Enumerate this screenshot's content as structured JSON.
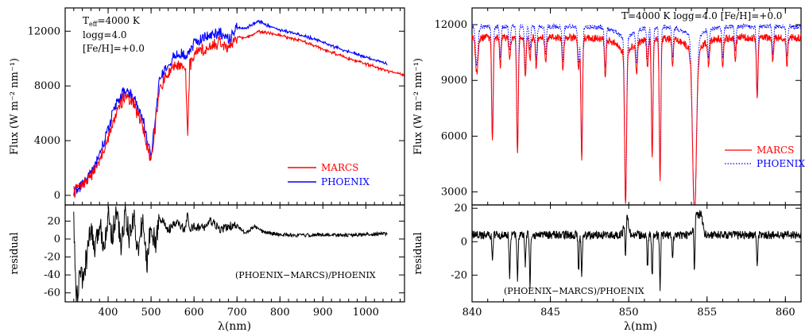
{
  "chart_data": [
    {
      "type": "line",
      "panel": "left-top",
      "ylabel": "Flux (W m⁻² nm⁻¹)",
      "xlim": [
        300,
        1090
      ],
      "ylim": [
        -700,
        13700
      ],
      "yticks": [
        0,
        4000,
        8000,
        12000
      ],
      "grid": false,
      "legend_position": "bottom-right",
      "annotations": [
        "T",
        "eff",
        "=4000 K",
        "logg=4.0",
        "[Fe/H]=+0.0"
      ],
      "series": [
        {
          "name": "MARCS",
          "color": "#ff0000",
          "style": "solid",
          "x": [
            320,
            340,
            360,
            380,
            400,
            420,
            440,
            460,
            480,
            500,
            520,
            540,
            560,
            580,
            585,
            590,
            600,
            620,
            640,
            660,
            680,
            700,
            720,
            750,
            800,
            850,
            900,
            950,
            1000,
            1050,
            1090
          ],
          "y": [
            200,
            800,
            1400,
            2600,
            4200,
            6200,
            7300,
            6600,
            5200,
            2400,
            7800,
            9000,
            9600,
            9400,
            4300,
            9500,
            10300,
            10700,
            10900,
            11300,
            10600,
            11600,
            11500,
            12000,
            11700,
            11300,
            10700,
            10100,
            9600,
            9100,
            8800
          ]
        },
        {
          "name": "PHOENIX",
          "color": "#0000ff",
          "style": "solid",
          "x": [
            320,
            340,
            360,
            380,
            400,
            420,
            440,
            460,
            480,
            500,
            520,
            540,
            560,
            580,
            600,
            620,
            640,
            660,
            680,
            700,
            720,
            750,
            800,
            850,
            900,
            950,
            1000,
            1050
          ],
          "y": [
            200,
            900,
            1600,
            3000,
            4800,
            6800,
            7700,
            7000,
            5600,
            2800,
            8600,
            9700,
            10300,
            10200,
            11100,
            11500,
            11700,
            12000,
            11300,
            12300,
            12200,
            12700,
            12100,
            11700,
            11200,
            10600,
            10100,
            9600
          ]
        }
      ]
    },
    {
      "type": "line",
      "panel": "left-bottom",
      "ylabel": "residual",
      "xlabel": "λ(nm)",
      "xlim": [
        300,
        1090
      ],
      "ylim": [
        -70,
        38
      ],
      "xticks": [
        400,
        500,
        600,
        700,
        800,
        900,
        1000
      ],
      "yticks": [
        -60,
        -40,
        -20,
        0,
        20
      ],
      "grid": false,
      "annotation": "(PHOENIX−MARCS)/PHOENIX",
      "series": [
        {
          "color": "#000000",
          "x": [
            320,
            325,
            330,
            335,
            340,
            350,
            360,
            370,
            380,
            390,
            400,
            410,
            420,
            430,
            440,
            450,
            460,
            470,
            480,
            490,
            500,
            510,
            520,
            540,
            560,
            580,
            585,
            590,
            600,
            620,
            640,
            660,
            680,
            700,
            720,
            740,
            760,
            800,
            850,
            900,
            950,
            1000,
            1050
          ],
          "y": [
            20,
            -60,
            -68,
            -30,
            -50,
            -20,
            10,
            -15,
            18,
            -5,
            25,
            5,
            33,
            -10,
            30,
            0,
            28,
            -18,
            24,
            -30,
            20,
            -8,
            25,
            10,
            18,
            10,
            28,
            8,
            15,
            12,
            20,
            10,
            14,
            15,
            6,
            14,
            8,
            5,
            4,
            5,
            4,
            5,
            6
          ]
        }
      ]
    },
    {
      "type": "line",
      "panel": "right-top",
      "ylabel": "Flux (W m⁻² nm⁻¹)",
      "xlim": [
        840,
        861
      ],
      "ylim": [
        2300,
        12900
      ],
      "yticks": [
        3000,
        6000,
        9000,
        12000
      ],
      "grid": false,
      "legend_position": "bottom-right",
      "annotation": "T=4000 K logg=4.0 [Fe/H]=+0.0",
      "continuum": {
        "MARCS": 11300,
        "PHOENIX": 11900
      },
      "lines": [
        [
          840.3,
          1900,
          0.08
        ],
        [
          841.3,
          5600,
          0.05
        ],
        [
          841.8,
          1500,
          0.05
        ],
        [
          842.4,
          1200,
          0.05
        ],
        [
          842.9,
          6200,
          0.05
        ],
        [
          843.4,
          2200,
          0.05
        ],
        [
          843.7,
          1200,
          0.05
        ],
        [
          844.1,
          1600,
          0.05
        ],
        [
          844.7,
          1400,
          0.05
        ],
        [
          845.8,
          1800,
          0.05
        ],
        [
          846.8,
          1700,
          0.06
        ],
        [
          847.0,
          6500,
          0.05
        ],
        [
          848.5,
          2000,
          0.05
        ],
        [
          849.8,
          8000,
          0.06
        ],
        [
          850.5,
          1600,
          0.05
        ],
        [
          851.2,
          1600,
          0.05
        ],
        [
          851.5,
          6300,
          0.05
        ],
        [
          852.0,
          7500,
          0.05
        ],
        [
          852.8,
          1400,
          0.05
        ],
        [
          854.2,
          8800,
          0.12
        ],
        [
          855.1,
          1300,
          0.05
        ],
        [
          856.0,
          1500,
          0.05
        ],
        [
          856.8,
          1200,
          0.05
        ],
        [
          858.2,
          3200,
          0.05
        ],
        [
          859.2,
          1300,
          0.05
        ],
        [
          860.1,
          1500,
          0.05
        ]
      ],
      "series": [
        {
          "name": "MARCS",
          "color": "#ff0000",
          "style": "solid"
        },
        {
          "name": "PHOENIX",
          "color": "#0000ff",
          "style": "dotted"
        }
      ]
    },
    {
      "type": "line",
      "panel": "right-bottom",
      "ylabel": "residual",
      "xlabel": "λ(nm)",
      "xlim": [
        840,
        861
      ],
      "ylim": [
        -36,
        22
      ],
      "xticks": [
        840,
        845,
        850,
        855,
        860
      ],
      "yticks": [
        -20,
        0,
        20
      ],
      "grid": false,
      "annotation": "(PHOENIX−MARCS)/PHOENIX",
      "baseline": 4,
      "features": [
        [
          841.3,
          -12
        ],
        [
          842.4,
          -20
        ],
        [
          842.9,
          -22
        ],
        [
          843.4,
          -14
        ],
        [
          843.7,
          -26
        ],
        [
          846.8,
          -18
        ],
        [
          847.0,
          -20
        ],
        [
          849.8,
          -20
        ],
        [
          849.85,
          16
        ],
        [
          851.2,
          -15
        ],
        [
          851.5,
          -22
        ],
        [
          852.0,
          -28
        ],
        [
          852.8,
          -10
        ],
        [
          854.2,
          -28
        ],
        [
          854.3,
          18
        ],
        [
          854.6,
          16
        ],
        [
          858.2,
          -14
        ]
      ],
      "series": [
        {
          "color": "#000000"
        }
      ]
    }
  ]
}
